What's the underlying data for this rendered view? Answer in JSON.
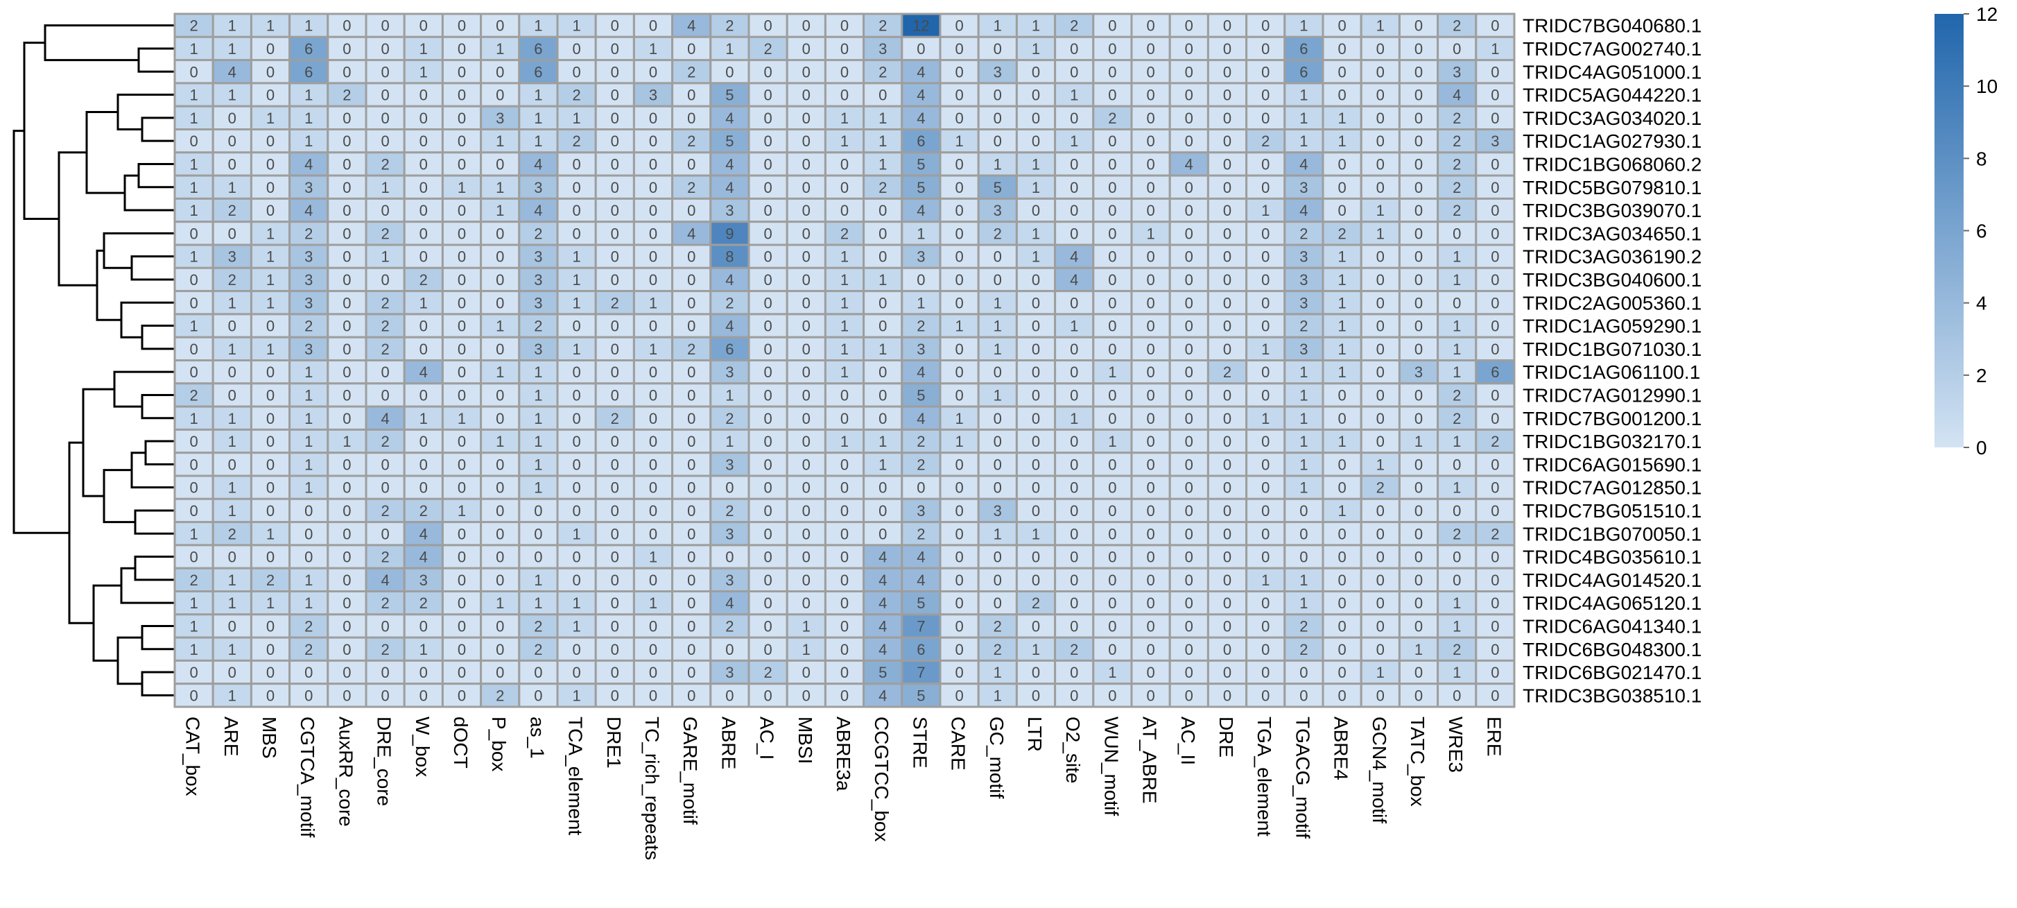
{
  "chart_data": {
    "type": "heatmap",
    "columns": [
      "CAT_box",
      "ARE",
      "MBS",
      "CGTCA_motif",
      "AuxRR_core",
      "DRE_core",
      "W_box",
      "dOCT",
      "P_box",
      "as_1",
      "TCA_element",
      "DRE1",
      "TC_rich_repeats",
      "GARE_motif",
      "ABRE",
      "AC_I",
      "MBSI",
      "ABRE3a",
      "CCGTCC_box",
      "STRE",
      "CARE",
      "GC_motif",
      "LTR",
      "O2_site",
      "WUN_motif",
      "AT_ABRE",
      "AC_II",
      "DRE",
      "TGA_element",
      "TGACG_motif",
      "ABRE4",
      "GCN4_motif",
      "TATC_box",
      "WRE3",
      "ERE"
    ],
    "rows": [
      "TRIDC7BG040680.1",
      "TRIDC7AG002740.1",
      "TRIDC4AG051000.1",
      "TRIDC5AG044220.1",
      "TRIDC3AG034020.1",
      "TRIDC1AG027930.1",
      "TRIDC1BG068060.2",
      "TRIDC5BG079810.1",
      "TRIDC3BG039070.1",
      "TRIDC3AG034650.1",
      "TRIDC3AG036190.2",
      "TRIDC3BG040600.1",
      "TRIDC2AG005360.1",
      "TRIDC1AG059290.1",
      "TRIDC1BG071030.1",
      "TRIDC1AG061100.1",
      "TRIDC7AG012990.1",
      "TRIDC7BG001200.1",
      "TRIDC1BG032170.1",
      "TRIDC6AG015690.1",
      "TRIDC7AG012850.1",
      "TRIDC7BG051510.1",
      "TRIDC1BG070050.1",
      "TRIDC4BG035610.1",
      "TRIDC4AG014520.1",
      "TRIDC4AG065120.1",
      "TRIDC6AG041340.1",
      "TRIDC6BG048300.1",
      "TRIDC6BG021470.1",
      "TRIDC3BG038510.1"
    ],
    "values": [
      [
        2,
        1,
        1,
        1,
        0,
        0,
        0,
        0,
        0,
        1,
        1,
        0,
        0,
        4,
        2,
        0,
        0,
        0,
        2,
        12,
        0,
        1,
        1,
        2,
        0,
        0,
        0,
        0,
        0,
        1,
        0,
        1,
        0,
        2,
        0
      ],
      [
        1,
        1,
        0,
        6,
        0,
        0,
        1,
        0,
        1,
        6,
        0,
        0,
        1,
        0,
        1,
        2,
        0,
        0,
        3,
        0,
        0,
        0,
        1,
        0,
        0,
        0,
        0,
        0,
        0,
        6,
        0,
        0,
        0,
        0,
        1
      ],
      [
        0,
        4,
        0,
        6,
        0,
        0,
        1,
        0,
        0,
        6,
        0,
        0,
        0,
        2,
        0,
        0,
        0,
        0,
        2,
        4,
        0,
        3,
        0,
        0,
        0,
        0,
        0,
        0,
        0,
        6,
        0,
        0,
        0,
        3,
        0
      ],
      [
        1,
        1,
        0,
        1,
        2,
        0,
        0,
        0,
        0,
        1,
        2,
        0,
        3,
        0,
        5,
        0,
        0,
        0,
        0,
        4,
        0,
        0,
        0,
        1,
        0,
        0,
        0,
        0,
        0,
        1,
        0,
        0,
        0,
        4,
        0
      ],
      [
        1,
        0,
        1,
        1,
        0,
        0,
        0,
        0,
        3,
        1,
        1,
        0,
        0,
        0,
        4,
        0,
        0,
        1,
        1,
        4,
        0,
        0,
        0,
        0,
        2,
        0,
        0,
        0,
        0,
        1,
        1,
        0,
        0,
        2,
        0
      ],
      [
        0,
        0,
        0,
        1,
        0,
        0,
        0,
        0,
        1,
        1,
        2,
        0,
        0,
        2,
        5,
        0,
        0,
        1,
        1,
        6,
        1,
        0,
        0,
        1,
        0,
        0,
        0,
        0,
        2,
        1,
        1,
        0,
        0,
        2,
        3
      ],
      [
        1,
        0,
        0,
        4,
        0,
        2,
        0,
        0,
        0,
        4,
        0,
        0,
        0,
        0,
        4,
        0,
        0,
        0,
        1,
        5,
        0,
        1,
        1,
        0,
        0,
        0,
        4,
        0,
        0,
        4,
        0,
        0,
        0,
        2,
        0
      ],
      [
        1,
        1,
        0,
        3,
        0,
        1,
        0,
        1,
        1,
        3,
        0,
        0,
        0,
        2,
        4,
        0,
        0,
        0,
        2,
        5,
        0,
        5,
        1,
        0,
        0,
        0,
        0,
        0,
        0,
        3,
        0,
        0,
        0,
        2,
        0
      ],
      [
        1,
        2,
        0,
        4,
        0,
        0,
        0,
        0,
        1,
        4,
        0,
        0,
        0,
        0,
        3,
        0,
        0,
        0,
        0,
        4,
        0,
        3,
        0,
        0,
        0,
        0,
        0,
        0,
        1,
        4,
        0,
        1,
        0,
        2,
        0
      ],
      [
        0,
        0,
        1,
        2,
        0,
        2,
        0,
        0,
        0,
        2,
        0,
        0,
        0,
        4,
        9,
        0,
        0,
        2,
        0,
        1,
        0,
        2,
        1,
        0,
        0,
        1,
        0,
        0,
        0,
        2,
        2,
        1,
        0,
        0,
        0
      ],
      [
        1,
        3,
        1,
        3,
        0,
        1,
        0,
        0,
        0,
        3,
        1,
        0,
        0,
        0,
        8,
        0,
        0,
        1,
        0,
        3,
        0,
        0,
        1,
        4,
        0,
        0,
        0,
        0,
        0,
        3,
        1,
        0,
        0,
        1,
        0
      ],
      [
        0,
        2,
        1,
        3,
        0,
        0,
        2,
        0,
        0,
        3,
        1,
        0,
        0,
        0,
        4,
        0,
        0,
        1,
        1,
        0,
        0,
        0,
        0,
        4,
        0,
        0,
        0,
        0,
        0,
        3,
        1,
        0,
        0,
        1,
        0
      ],
      [
        0,
        1,
        1,
        3,
        0,
        2,
        1,
        0,
        0,
        3,
        1,
        2,
        1,
        0,
        2,
        0,
        0,
        1,
        0,
        1,
        0,
        1,
        0,
        0,
        0,
        0,
        0,
        0,
        0,
        3,
        1,
        0,
        0,
        0,
        0
      ],
      [
        1,
        0,
        0,
        2,
        0,
        2,
        0,
        0,
        1,
        2,
        0,
        0,
        0,
        0,
        4,
        0,
        0,
        1,
        0,
        2,
        1,
        1,
        0,
        1,
        0,
        0,
        0,
        0,
        0,
        2,
        1,
        0,
        0,
        1,
        0
      ],
      [
        0,
        1,
        1,
        3,
        0,
        2,
        0,
        0,
        0,
        3,
        1,
        0,
        1,
        2,
        6,
        0,
        0,
        1,
        1,
        3,
        0,
        1,
        0,
        0,
        0,
        0,
        0,
        0,
        1,
        3,
        1,
        0,
        0,
        1,
        0
      ],
      [
        0,
        0,
        0,
        1,
        0,
        0,
        4,
        0,
        1,
        1,
        0,
        0,
        0,
        0,
        3,
        0,
        0,
        1,
        0,
        4,
        0,
        0,
        0,
        0,
        1,
        0,
        0,
        2,
        0,
        1,
        1,
        0,
        3,
        1,
        6
      ],
      [
        2,
        0,
        0,
        1,
        0,
        0,
        0,
        0,
        0,
        1,
        0,
        0,
        0,
        0,
        1,
        0,
        0,
        0,
        0,
        5,
        0,
        1,
        0,
        0,
        0,
        0,
        0,
        0,
        0,
        1,
        0,
        0,
        0,
        2,
        0
      ],
      [
        1,
        1,
        0,
        1,
        0,
        4,
        1,
        1,
        0,
        1,
        0,
        2,
        0,
        0,
        2,
        0,
        0,
        0,
        0,
        4,
        1,
        0,
        0,
        1,
        0,
        0,
        0,
        0,
        1,
        1,
        0,
        0,
        0,
        2,
        0
      ],
      [
        0,
        1,
        0,
        1,
        1,
        2,
        0,
        0,
        1,
        1,
        0,
        0,
        0,
        0,
        1,
        0,
        0,
        1,
        1,
        2,
        1,
        0,
        0,
        0,
        1,
        0,
        0,
        0,
        0,
        1,
        1,
        0,
        1,
        1,
        2
      ],
      [
        0,
        0,
        0,
        1,
        0,
        0,
        0,
        0,
        0,
        1,
        0,
        0,
        0,
        0,
        3,
        0,
        0,
        0,
        1,
        2,
        0,
        0,
        0,
        0,
        0,
        0,
        0,
        0,
        0,
        1,
        0,
        1,
        0,
        0,
        0
      ],
      [
        0,
        1,
        0,
        1,
        0,
        0,
        0,
        0,
        0,
        1,
        0,
        0,
        0,
        0,
        0,
        0,
        0,
        0,
        0,
        0,
        0,
        0,
        0,
        0,
        0,
        0,
        0,
        0,
        0,
        1,
        0,
        2,
        0,
        1,
        0
      ],
      [
        0,
        1,
        0,
        0,
        0,
        2,
        2,
        1,
        0,
        0,
        0,
        0,
        0,
        0,
        2,
        0,
        0,
        0,
        0,
        3,
        0,
        3,
        0,
        0,
        0,
        0,
        0,
        0,
        0,
        0,
        1,
        0,
        0,
        0,
        0
      ],
      [
        1,
        2,
        1,
        0,
        0,
        0,
        4,
        0,
        0,
        0,
        1,
        0,
        0,
        0,
        3,
        0,
        0,
        0,
        0,
        2,
        0,
        1,
        1,
        0,
        0,
        0,
        0,
        0,
        0,
        0,
        0,
        0,
        0,
        2,
        2
      ],
      [
        0,
        0,
        0,
        0,
        0,
        2,
        4,
        0,
        0,
        0,
        0,
        0,
        1,
        0,
        0,
        0,
        0,
        0,
        4,
        4,
        0,
        0,
        0,
        0,
        0,
        0,
        0,
        0,
        0,
        0,
        0,
        0,
        0,
        0,
        0
      ],
      [
        2,
        1,
        2,
        1,
        0,
        4,
        3,
        0,
        0,
        1,
        0,
        0,
        0,
        0,
        3,
        0,
        0,
        0,
        4,
        4,
        0,
        0,
        0,
        0,
        0,
        0,
        0,
        0,
        1,
        1,
        0,
        0,
        0,
        0,
        0
      ],
      [
        1,
        1,
        1,
        1,
        0,
        2,
        2,
        0,
        1,
        1,
        1,
        0,
        1,
        0,
        4,
        0,
        0,
        0,
        4,
        5,
        0,
        0,
        2,
        0,
        0,
        0,
        0,
        0,
        0,
        1,
        0,
        0,
        0,
        1,
        0
      ],
      [
        1,
        0,
        0,
        2,
        0,
        0,
        0,
        0,
        0,
        2,
        1,
        0,
        0,
        0,
        2,
        0,
        1,
        0,
        4,
        7,
        0,
        2,
        0,
        0,
        0,
        0,
        0,
        0,
        0,
        2,
        0,
        0,
        0,
        1,
        0
      ],
      [
        1,
        1,
        0,
        2,
        0,
        2,
        1,
        0,
        0,
        2,
        0,
        0,
        0,
        0,
        0,
        0,
        1,
        0,
        4,
        6,
        0,
        2,
        1,
        2,
        0,
        0,
        0,
        0,
        0,
        2,
        0,
        0,
        1,
        2,
        0
      ],
      [
        0,
        0,
        0,
        0,
        0,
        0,
        0,
        0,
        0,
        0,
        0,
        0,
        0,
        0,
        3,
        2,
        0,
        0,
        5,
        7,
        0,
        1,
        0,
        0,
        1,
        0,
        0,
        0,
        0,
        0,
        0,
        1,
        0,
        1,
        0
      ],
      [
        0,
        1,
        0,
        0,
        0,
        0,
        0,
        0,
        2,
        0,
        1,
        0,
        0,
        0,
        0,
        0,
        0,
        0,
        4,
        5,
        0,
        1,
        0,
        0,
        0,
        0,
        0,
        0,
        0,
        0,
        0,
        0,
        0,
        0,
        0
      ]
    ],
    "color_scale": {
      "min": 0,
      "max": 12,
      "low_color": "#d3e3f3",
      "high_color": "#2166ac",
      "ticks": [
        0,
        2,
        4,
        6,
        8,
        10,
        12
      ]
    },
    "grid_color": "#9e9e9e",
    "row_dendrogram": true,
    "legend_position": "right"
  }
}
